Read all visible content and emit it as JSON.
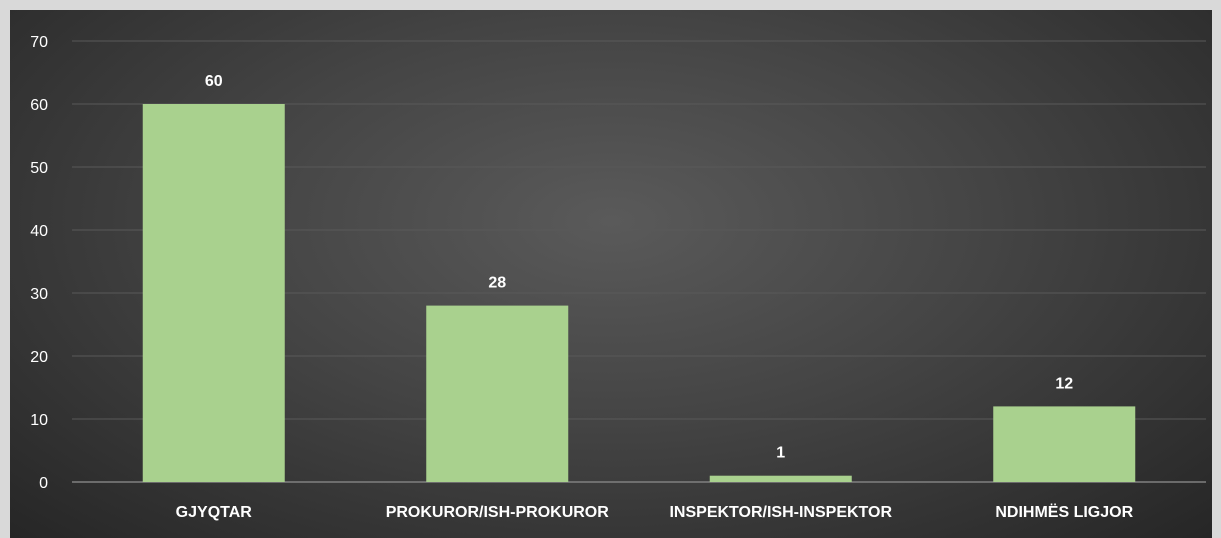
{
  "chart_data": {
    "type": "bar",
    "categories": [
      "GJYQTAR",
      "PROKUROR/ISH-PROKUROR",
      "INSPEKTOR/ISH-INSPEKTOR",
      "NDIHMËS LIGJOR"
    ],
    "values": [
      60,
      28,
      1,
      12
    ],
    "ylim": [
      0,
      70
    ],
    "yticks": [
      0,
      10,
      20,
      30,
      40,
      50,
      60,
      70
    ],
    "grid": true,
    "data_labels": true,
    "colors": {
      "bar": "#a9d18e",
      "background": "#3f3f3f",
      "frame": "#d9d9d9",
      "gridline": "#595959",
      "axis": "#808080",
      "text": "#ffffff"
    }
  }
}
